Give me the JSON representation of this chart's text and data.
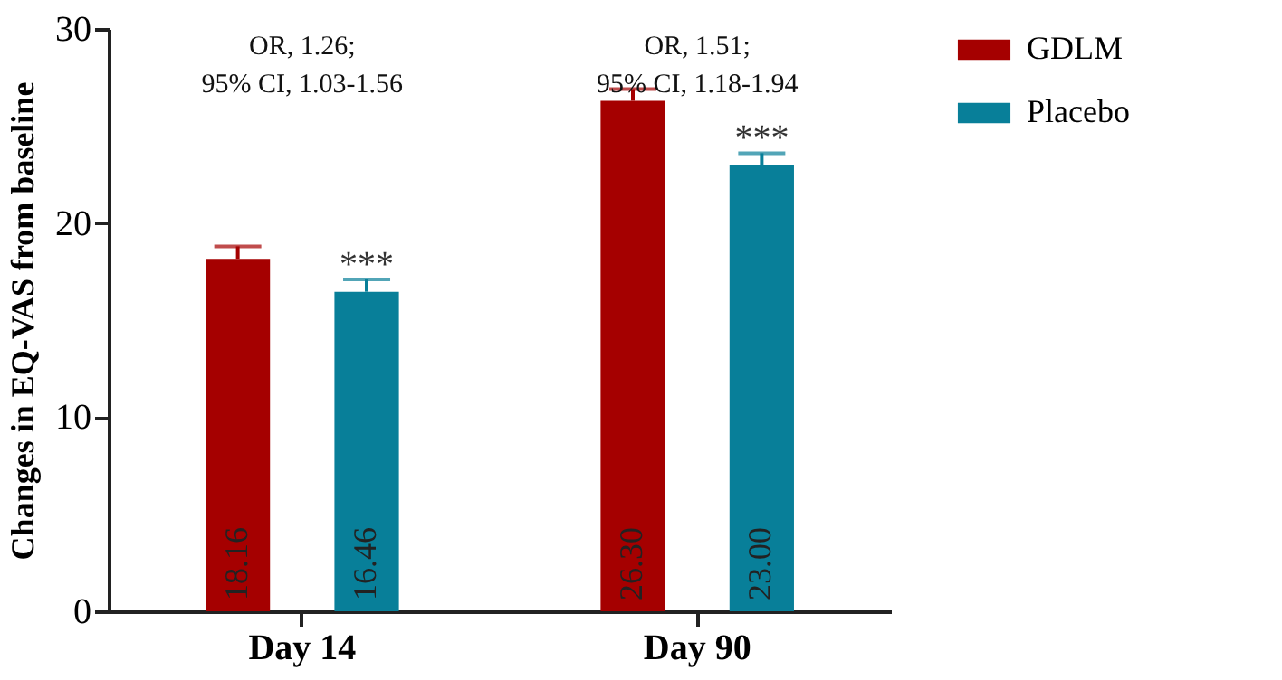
{
  "chart_data": {
    "type": "bar",
    "ylabel": "Changes in EQ-VAS from baseline",
    "categories": [
      "Day 14",
      "Day 90"
    ],
    "series": [
      {
        "name": "GDLM",
        "color": "#a50000",
        "values": [
          18.16,
          26.3
        ],
        "value_labels": [
          "18.16",
          "26.30"
        ],
        "errors": [
          [
            18.16,
            18.8
          ],
          [
            26.3,
            26.9
          ]
        ]
      },
      {
        "name": "Placebo",
        "color": "#087f99",
        "values": [
          16.46,
          23.0
        ],
        "value_labels": [
          "16.46",
          "23.00"
        ],
        "errors": [
          [
            16.46,
            17.1
          ],
          [
            23.0,
            23.6
          ]
        ]
      }
    ],
    "ylim": [
      0,
      30
    ],
    "yticks": [
      0,
      10,
      20,
      30
    ],
    "grid": false,
    "legend": "top right",
    "annotations": [
      "OR, 1.26;\n95% CI, 1.03-1.56",
      "OR, 1.51;\n95% CI, 1.18-1.94",
      "***",
      "***"
    ]
  }
}
